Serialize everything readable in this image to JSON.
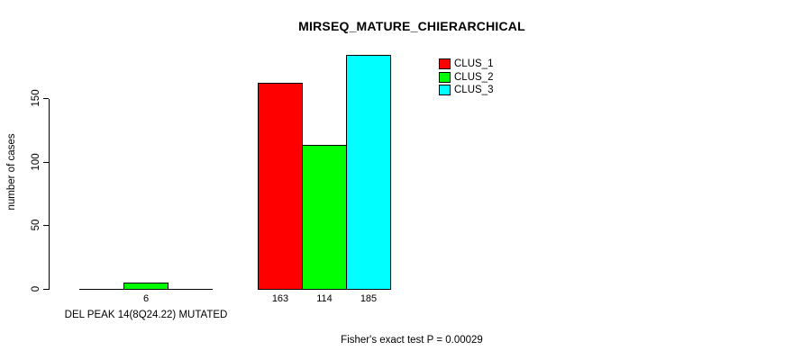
{
  "chart_data": {
    "type": "bar",
    "title": "MIRSEQ_MATURE_CHIERARCHICAL",
    "ylabel": "number of cases",
    "xlabel": "",
    "categories": [
      "DEL PEAK 14(8Q24.22) MUTATED",
      ""
    ],
    "series": [
      {
        "name": "CLUS_1",
        "color": "#ff0000",
        "values": [
          0,
          163
        ]
      },
      {
        "name": "CLUS_2",
        "color": "#00ff00",
        "values": [
          6,
          114
        ]
      },
      {
        "name": "CLUS_3",
        "color": "#00ffff",
        "values": [
          0,
          185
        ]
      }
    ],
    "bar_value_labels_shown": [
      "6",
      "163",
      "114",
      "185"
    ],
    "yticks": [
      0,
      50,
      100,
      150
    ],
    "ylim": [
      0,
      190
    ],
    "grid": false,
    "legend": {
      "position": "top-right",
      "entries": [
        "CLUS_1",
        "CLUS_2",
        "CLUS_3"
      ]
    },
    "annotation": "Fisher's exact test P = 0.00029",
    "axis_color": "#000000",
    "background_color": "#ffffff"
  }
}
